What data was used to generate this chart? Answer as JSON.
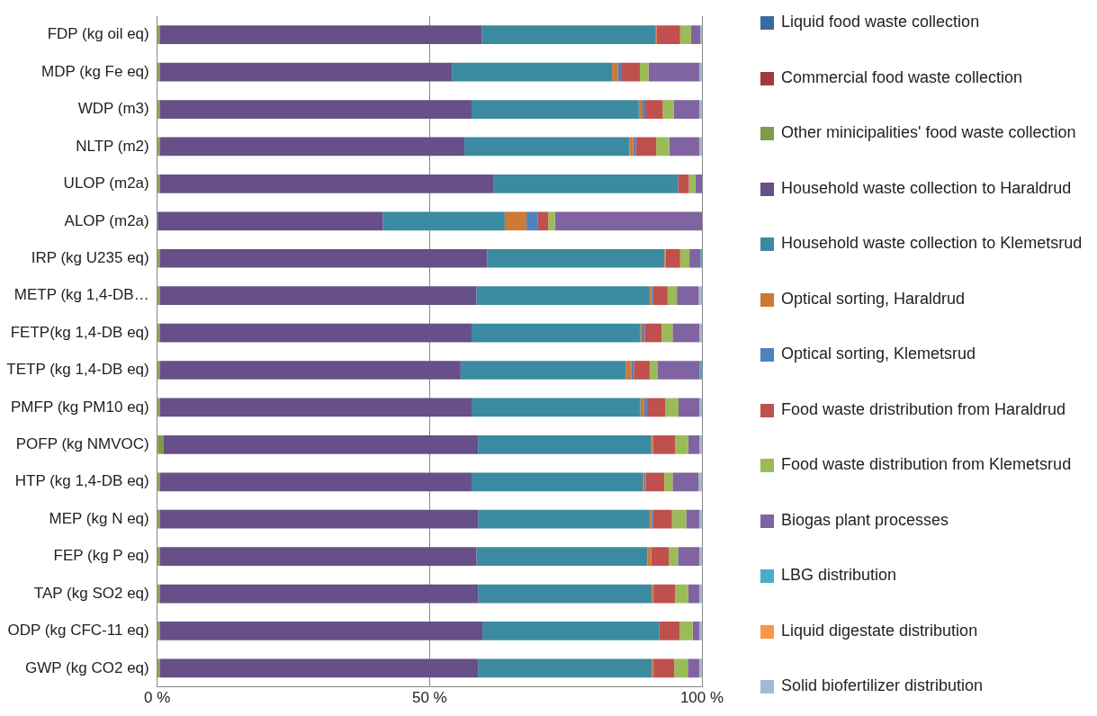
{
  "chart_data": {
    "type": "bar",
    "orientation": "horizontal",
    "stacked": true,
    "grid": "x",
    "legend": "right",
    "categories": [
      "FDP (kg oil eq)",
      "MDP (kg Fe eq)",
      "WDP (m3)",
      "NLTP (m2)",
      "ULOP (m2a)",
      "ALOP (m2a)",
      "IRP (kg U235 eq)",
      "METP (kg 1,4-DB…",
      "FETP(kg 1,4-DB eq)",
      "TETP (kg 1,4-DB eq)",
      "PMFP (kg PM10 eq)",
      "POFP (kg NMVOC)",
      "HTP (kg 1,4-DB eq)",
      "MEP (kg N eq)",
      "FEP (kg P eq)",
      "TAP (kg SO2 eq)",
      "ODP (kg CFC-11 eq)",
      "GWP (kg CO2 eq)"
    ],
    "xlim": [
      0,
      100
    ],
    "xticks": [
      {
        "value": 0,
        "label": "0 %"
      },
      {
        "value": 50,
        "label": "50 %"
      },
      {
        "value": 100,
        "label": "100 %"
      }
    ],
    "series": [
      {
        "name": "Liquid food waste collection",
        "color": "#3b6aa0",
        "values": [
          0,
          0,
          0,
          0,
          0,
          0,
          0,
          0,
          0,
          0,
          0,
          0,
          0,
          0,
          0,
          0,
          0,
          0
        ]
      },
      {
        "name": "Commercial food waste collection",
        "color": "#9e3b39",
        "values": [
          0,
          0,
          0,
          0,
          0,
          0,
          0,
          0,
          0,
          0,
          0,
          0,
          0,
          0,
          0,
          0,
          0,
          0
        ]
      },
      {
        "name": "Other minicipalities' food waste collection",
        "color": "#7f9a48",
        "values": [
          0.5,
          0.5,
          0.5,
          0.5,
          0.5,
          0,
          0.5,
          0.5,
          0.5,
          0.5,
          0.5,
          1.2,
          0.5,
          0.5,
          0.5,
          0.5,
          0.5,
          0.5
        ]
      },
      {
        "name": "Household waste  collection to Haraldrud",
        "color": "#674f88",
        "values": [
          59.1,
          53.6,
          57.2,
          55.9,
          61.3,
          41.4,
          60.1,
          58.1,
          57.2,
          55.2,
          57.2,
          57.7,
          57.2,
          58.4,
          58.1,
          58.4,
          59.2,
          58.4
        ]
      },
      {
        "name": "Household waste  collection to Klemetsrud",
        "color": "#3c8aa0",
        "values": [
          31.8,
          29.4,
          30.7,
          30.3,
          33.8,
          22.4,
          32.5,
          31.8,
          31.0,
          30.3,
          31.0,
          31.8,
          31.4,
          31.5,
          31.4,
          31.9,
          32.5,
          31.9
        ]
      },
      {
        "name": "Optical sorting, Haraldrud",
        "color": "#cc7a35",
        "values": [
          0.3,
          1.1,
          0.7,
          0.7,
          0,
          4.0,
          0.2,
          0.3,
          0.4,
          1.0,
          0.7,
          0.3,
          0.3,
          0.3,
          0.7,
          0.3,
          0,
          0.3
        ]
      },
      {
        "name": "Optical sorting, Klemetsrud",
        "color": "#4f81bd",
        "values": [
          0,
          0.7,
          0.5,
          0.5,
          0,
          2.0,
          0,
          0.3,
          0.4,
          0.5,
          0.5,
          0,
          0.3,
          0.3,
          0,
          0,
          0,
          0
        ]
      },
      {
        "name": "Food waste dristribution from Haraldrud",
        "color": "#c0504d",
        "values": [
          4.3,
          3.3,
          3.2,
          3.7,
          2.0,
          2.0,
          2.7,
          2.7,
          3.1,
          2.9,
          3.4,
          4.1,
          3.4,
          3.5,
          3.2,
          4.0,
          3.7,
          3.8
        ]
      },
      {
        "name": "Food waste distribution from Klemetsrud",
        "color": "#9bbb59",
        "values": [
          2.0,
          1.6,
          2.0,
          2.4,
          1.2,
          1.2,
          1.7,
          1.7,
          2.0,
          1.5,
          2.4,
          2.4,
          1.5,
          2.6,
          1.7,
          2.4,
          2.4,
          2.5
        ]
      },
      {
        "name": "Biogas plant processes",
        "color": "#8064a2",
        "values": [
          1.7,
          9.3,
          4.7,
          5.5,
          1.2,
          27.0,
          2.0,
          4.0,
          4.9,
          7.7,
          3.8,
          2.0,
          4.8,
          2.4,
          3.9,
          2.0,
          1.2,
          2.1
        ]
      },
      {
        "name": "LBG distribution",
        "color": "#4bacc6",
        "values": [
          0,
          0,
          0,
          0,
          0,
          0,
          0.3,
          0,
          0,
          0.4,
          0,
          0,
          0,
          0,
          0,
          0,
          0,
          0
        ]
      },
      {
        "name": "Liquid digestate distribution",
        "color": "#f79646",
        "values": [
          0,
          0,
          0,
          0,
          0,
          0,
          0,
          0,
          0,
          0,
          0,
          0,
          0,
          0,
          0,
          0,
          0,
          0
        ]
      },
      {
        "name": "Solid biofertilizer distribution",
        "color": "#a5b7db",
        "values": [
          0.3,
          0.5,
          0.5,
          0.5,
          0,
          0,
          0,
          0.6,
          0.5,
          0,
          0.5,
          0.5,
          0.6,
          0.5,
          0.5,
          0.5,
          0.5,
          0.5
        ]
      }
    ]
  }
}
